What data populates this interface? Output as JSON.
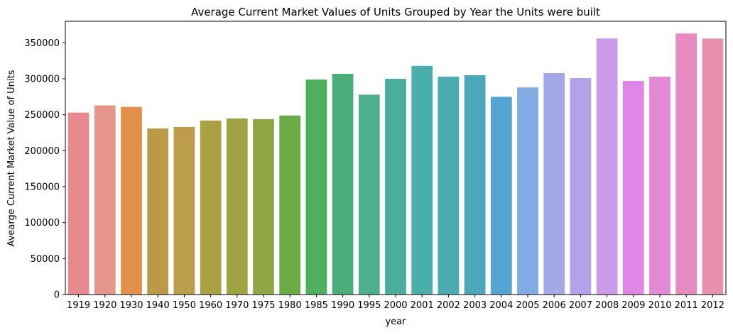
{
  "chart_data": {
    "type": "bar",
    "title": "Average Current Market Values of Units Grouped by Year the Units were built",
    "xlabel": "year",
    "ylabel": "Avearge Current Market Value of Units",
    "categories": [
      "1919",
      "1920",
      "1930",
      "1940",
      "1950",
      "1960",
      "1970",
      "1975",
      "1980",
      "1985",
      "1990",
      "1995",
      "2000",
      "2001",
      "2002",
      "2003",
      "2004",
      "2005",
      "2006",
      "2007",
      "2008",
      "2009",
      "2010",
      "2011",
      "2012"
    ],
    "values": [
      253000,
      263000,
      261000,
      231000,
      233000,
      242000,
      245000,
      244000,
      249000,
      299000,
      307000,
      278000,
      300000,
      318000,
      303000,
      305000,
      275000,
      288000,
      308000,
      301000,
      356000,
      297000,
      303000,
      363000,
      356000
    ],
    "colors": [
      "#e8898f",
      "#e6968a",
      "#e3904d",
      "#bc9947",
      "#bc9d4c",
      "#a9a042",
      "#a0a344",
      "#8ea646",
      "#6aab45",
      "#4eaf5d",
      "#4dae7c",
      "#4fae8d",
      "#4aad9d",
      "#4aaeaa",
      "#4aabb0",
      "#4aa8b9",
      "#53a6d3",
      "#80abe3",
      "#a2a8e8",
      "#b4a2e8",
      "#c99be8",
      "#df86e6",
      "#e489d6",
      "#e68ac0",
      "#e891ae"
    ],
    "ylim": [
      0,
      380000
    ],
    "yticks": [
      0,
      50000,
      100000,
      150000,
      200000,
      250000,
      300000,
      350000
    ],
    "grid": false,
    "legend": "none"
  }
}
